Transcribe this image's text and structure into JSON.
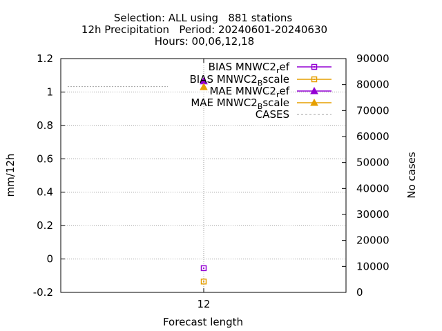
{
  "chart_data": {
    "type": "scatter",
    "title_lines": [
      "Selection: ALL using   881 stations",
      "12h Precipitation   Period: 20240601-20240630",
      "Hours: 00,06,12,18"
    ],
    "xlabel": "Forecast length",
    "ylabel": "mm/12h",
    "y2label": "No cases",
    "x_categories": [
      "12"
    ],
    "ylim": [
      -0.2,
      1.2
    ],
    "yticks": [
      "-0.2",
      "0",
      "0.2",
      "0.4",
      "0.6",
      "0.8",
      "1",
      "1.2"
    ],
    "y2lim": [
      0,
      90000
    ],
    "y2ticks": [
      "0",
      "10000",
      "20000",
      "30000",
      "40000",
      "50000",
      "60000",
      "70000",
      "80000",
      "90000"
    ],
    "grid": true,
    "legend_position": "top-right",
    "legend": [
      {
        "main": "BIAS MNWC2",
        "sub": "r",
        "tail": "ef",
        "color": "#9400d3",
        "marker": "open-square",
        "line": "solid"
      },
      {
        "main": "BIAS MNWC2",
        "sub": "B",
        "tail": "scale",
        "color": "#e69f00",
        "marker": "open-square",
        "line": "solid"
      },
      {
        "main": "MAE MNWC2",
        "sub": "r",
        "tail": "ef",
        "color": "#9400d3",
        "marker": "triangle",
        "line": "solid"
      },
      {
        "main": "MAE MNWC2",
        "sub": "B",
        "tail": "scale",
        "color": "#e69f00",
        "marker": "triangle",
        "line": "solid"
      },
      {
        "main": "CASES",
        "sub": "",
        "tail": "",
        "color": "#a0a0a0",
        "marker": "none",
        "line": "dashed"
      }
    ],
    "series": [
      {
        "legend_index": 0,
        "axis": "y",
        "x": [
          "12"
        ],
        "values": [
          -0.055
        ]
      },
      {
        "legend_index": 1,
        "axis": "y",
        "x": [
          "12"
        ],
        "values": [
          -0.135
        ]
      },
      {
        "legend_index": 2,
        "axis": "y",
        "x": [
          "12"
        ],
        "values": [
          1.065
        ]
      },
      {
        "legend_index": 3,
        "axis": "y",
        "x": [
          "12"
        ],
        "values": [
          1.03
        ]
      },
      {
        "legend_index": 4,
        "axis": "y2",
        "x": [
          "12"
        ],
        "values": [
          79200
        ]
      }
    ]
  }
}
